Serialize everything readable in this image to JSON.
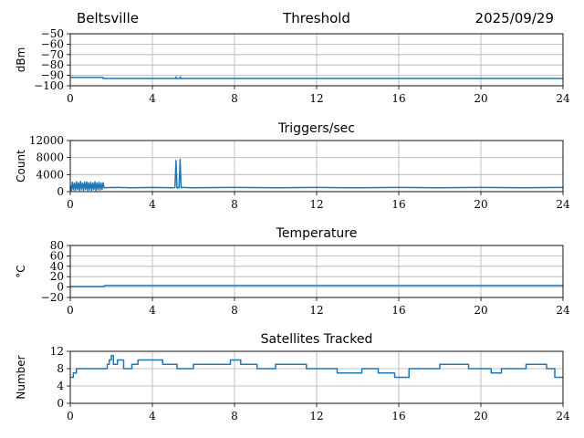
{
  "header": {
    "location": "Beltsville",
    "date": "2025/09/29"
  },
  "colors": {
    "series": "#1f77b4",
    "grid": "#b0b0b0",
    "axes": "#000000"
  },
  "chart_data": [
    {
      "type": "line",
      "title": "Threshold",
      "xlabel": "",
      "ylabel": "dBm",
      "xlim": [
        0,
        24
      ],
      "ylim": [
        -100,
        -50
      ],
      "xticks": [
        0,
        4,
        8,
        12,
        16,
        20,
        24
      ],
      "yticks": [
        -100,
        -90,
        -80,
        -70,
        -60,
        -50
      ],
      "grid": true,
      "series": [
        {
          "x": [
            0,
            1.6,
            1.6,
            5.15,
            5.15,
            5.2,
            5.35,
            5.35,
            5.4,
            24
          ],
          "y": [
            -92,
            -92,
            -93,
            -93,
            -91.5,
            -93,
            -93,
            -91.5,
            -93,
            -93
          ]
        }
      ]
    },
    {
      "type": "line",
      "title": "Triggers/sec",
      "xlabel": "",
      "ylabel": "Count",
      "xlim": [
        0,
        24
      ],
      "ylim": [
        0,
        12000
      ],
      "xticks": [
        0,
        4,
        8,
        12,
        16,
        20,
        24
      ],
      "yticks": [
        0,
        4000,
        8000,
        12000
      ],
      "grid": true,
      "series": [
        {
          "x": [
            0,
            0.05,
            0.1,
            0.15,
            0.2,
            0.25,
            0.3,
            0.35,
            0.4,
            0.45,
            0.5,
            0.55,
            0.6,
            0.65,
            0.7,
            0.75,
            0.8,
            0.85,
            0.9,
            0.95,
            1.0,
            1.05,
            1.1,
            1.15,
            1.2,
            1.25,
            1.3,
            1.35,
            1.4,
            1.45,
            1.5,
            1.55,
            1.6,
            1.65,
            2,
            3,
            4,
            5,
            5.1,
            5.15,
            5.2,
            5.25,
            5.3,
            5.35,
            5.4,
            5.45,
            6,
            8,
            10,
            12,
            14,
            16,
            18,
            20,
            22,
            24
          ],
          "y": [
            1500,
            300,
            2200,
            400,
            2000,
            350,
            2300,
            500,
            2100,
            300,
            2400,
            450,
            2000,
            350,
            2200,
            500,
            2300,
            300,
            2100,
            400,
            2200,
            350,
            2000,
            500,
            2300,
            300,
            2100,
            450,
            2200,
            400,
            2000,
            500,
            2100,
            900,
            1000,
            900,
            1000,
            900,
            1000,
            7300,
            800,
            1000,
            900,
            7600,
            900,
            1000,
            900,
            1000,
            900,
            1000,
            900,
            1000,
            900,
            1000,
            900,
            1000
          ]
        }
      ]
    },
    {
      "type": "line",
      "title": "Temperature",
      "xlabel": "",
      "ylabel": "°C",
      "xlim": [
        0,
        24
      ],
      "ylim": [
        -20,
        80
      ],
      "xticks": [
        0,
        4,
        8,
        12,
        16,
        20,
        24
      ],
      "yticks": [
        -20,
        0,
        20,
        40,
        60,
        80
      ],
      "grid": true,
      "series": [
        {
          "x": [
            0,
            1.6,
            1.7,
            24
          ],
          "y": [
            1,
            1,
            3,
            3
          ]
        }
      ]
    },
    {
      "type": "line",
      "title": "Satellites Tracked",
      "xlabel": "",
      "ylabel": "Number",
      "xlim": [
        0,
        24
      ],
      "ylim": [
        0,
        12
      ],
      "xticks": [
        0,
        4,
        8,
        12,
        16,
        20,
        24
      ],
      "yticks": [
        0,
        4,
        8,
        12
      ],
      "grid": true,
      "series": [
        {
          "step": true,
          "x": [
            0,
            0.15,
            0.3,
            0.8,
            1.8,
            1.9,
            2.0,
            2.1,
            2.3,
            2.6,
            3.0,
            3.3,
            4.5,
            5.2,
            6.0,
            7.0,
            7.8,
            8.3,
            9.1,
            10.0,
            10.8,
            11.5,
            12.5,
            13.0,
            13.5,
            14.2,
            15.0,
            15.8,
            16.0,
            16.5,
            17.2,
            18.0,
            19.0,
            19.4,
            20.5,
            21.0,
            22.0,
            22.2,
            23.2,
            23.6,
            24
          ],
          "y": [
            6,
            7,
            8,
            8,
            9,
            10,
            11,
            9,
            10,
            8,
            9,
            10,
            9,
            8,
            9,
            9,
            10,
            9,
            8,
            9,
            9,
            8,
            8,
            7,
            7,
            8,
            7,
            6,
            6,
            8,
            8,
            9,
            9,
            8,
            7,
            8,
            8,
            9,
            8,
            6,
            6
          ]
        }
      ]
    }
  ]
}
